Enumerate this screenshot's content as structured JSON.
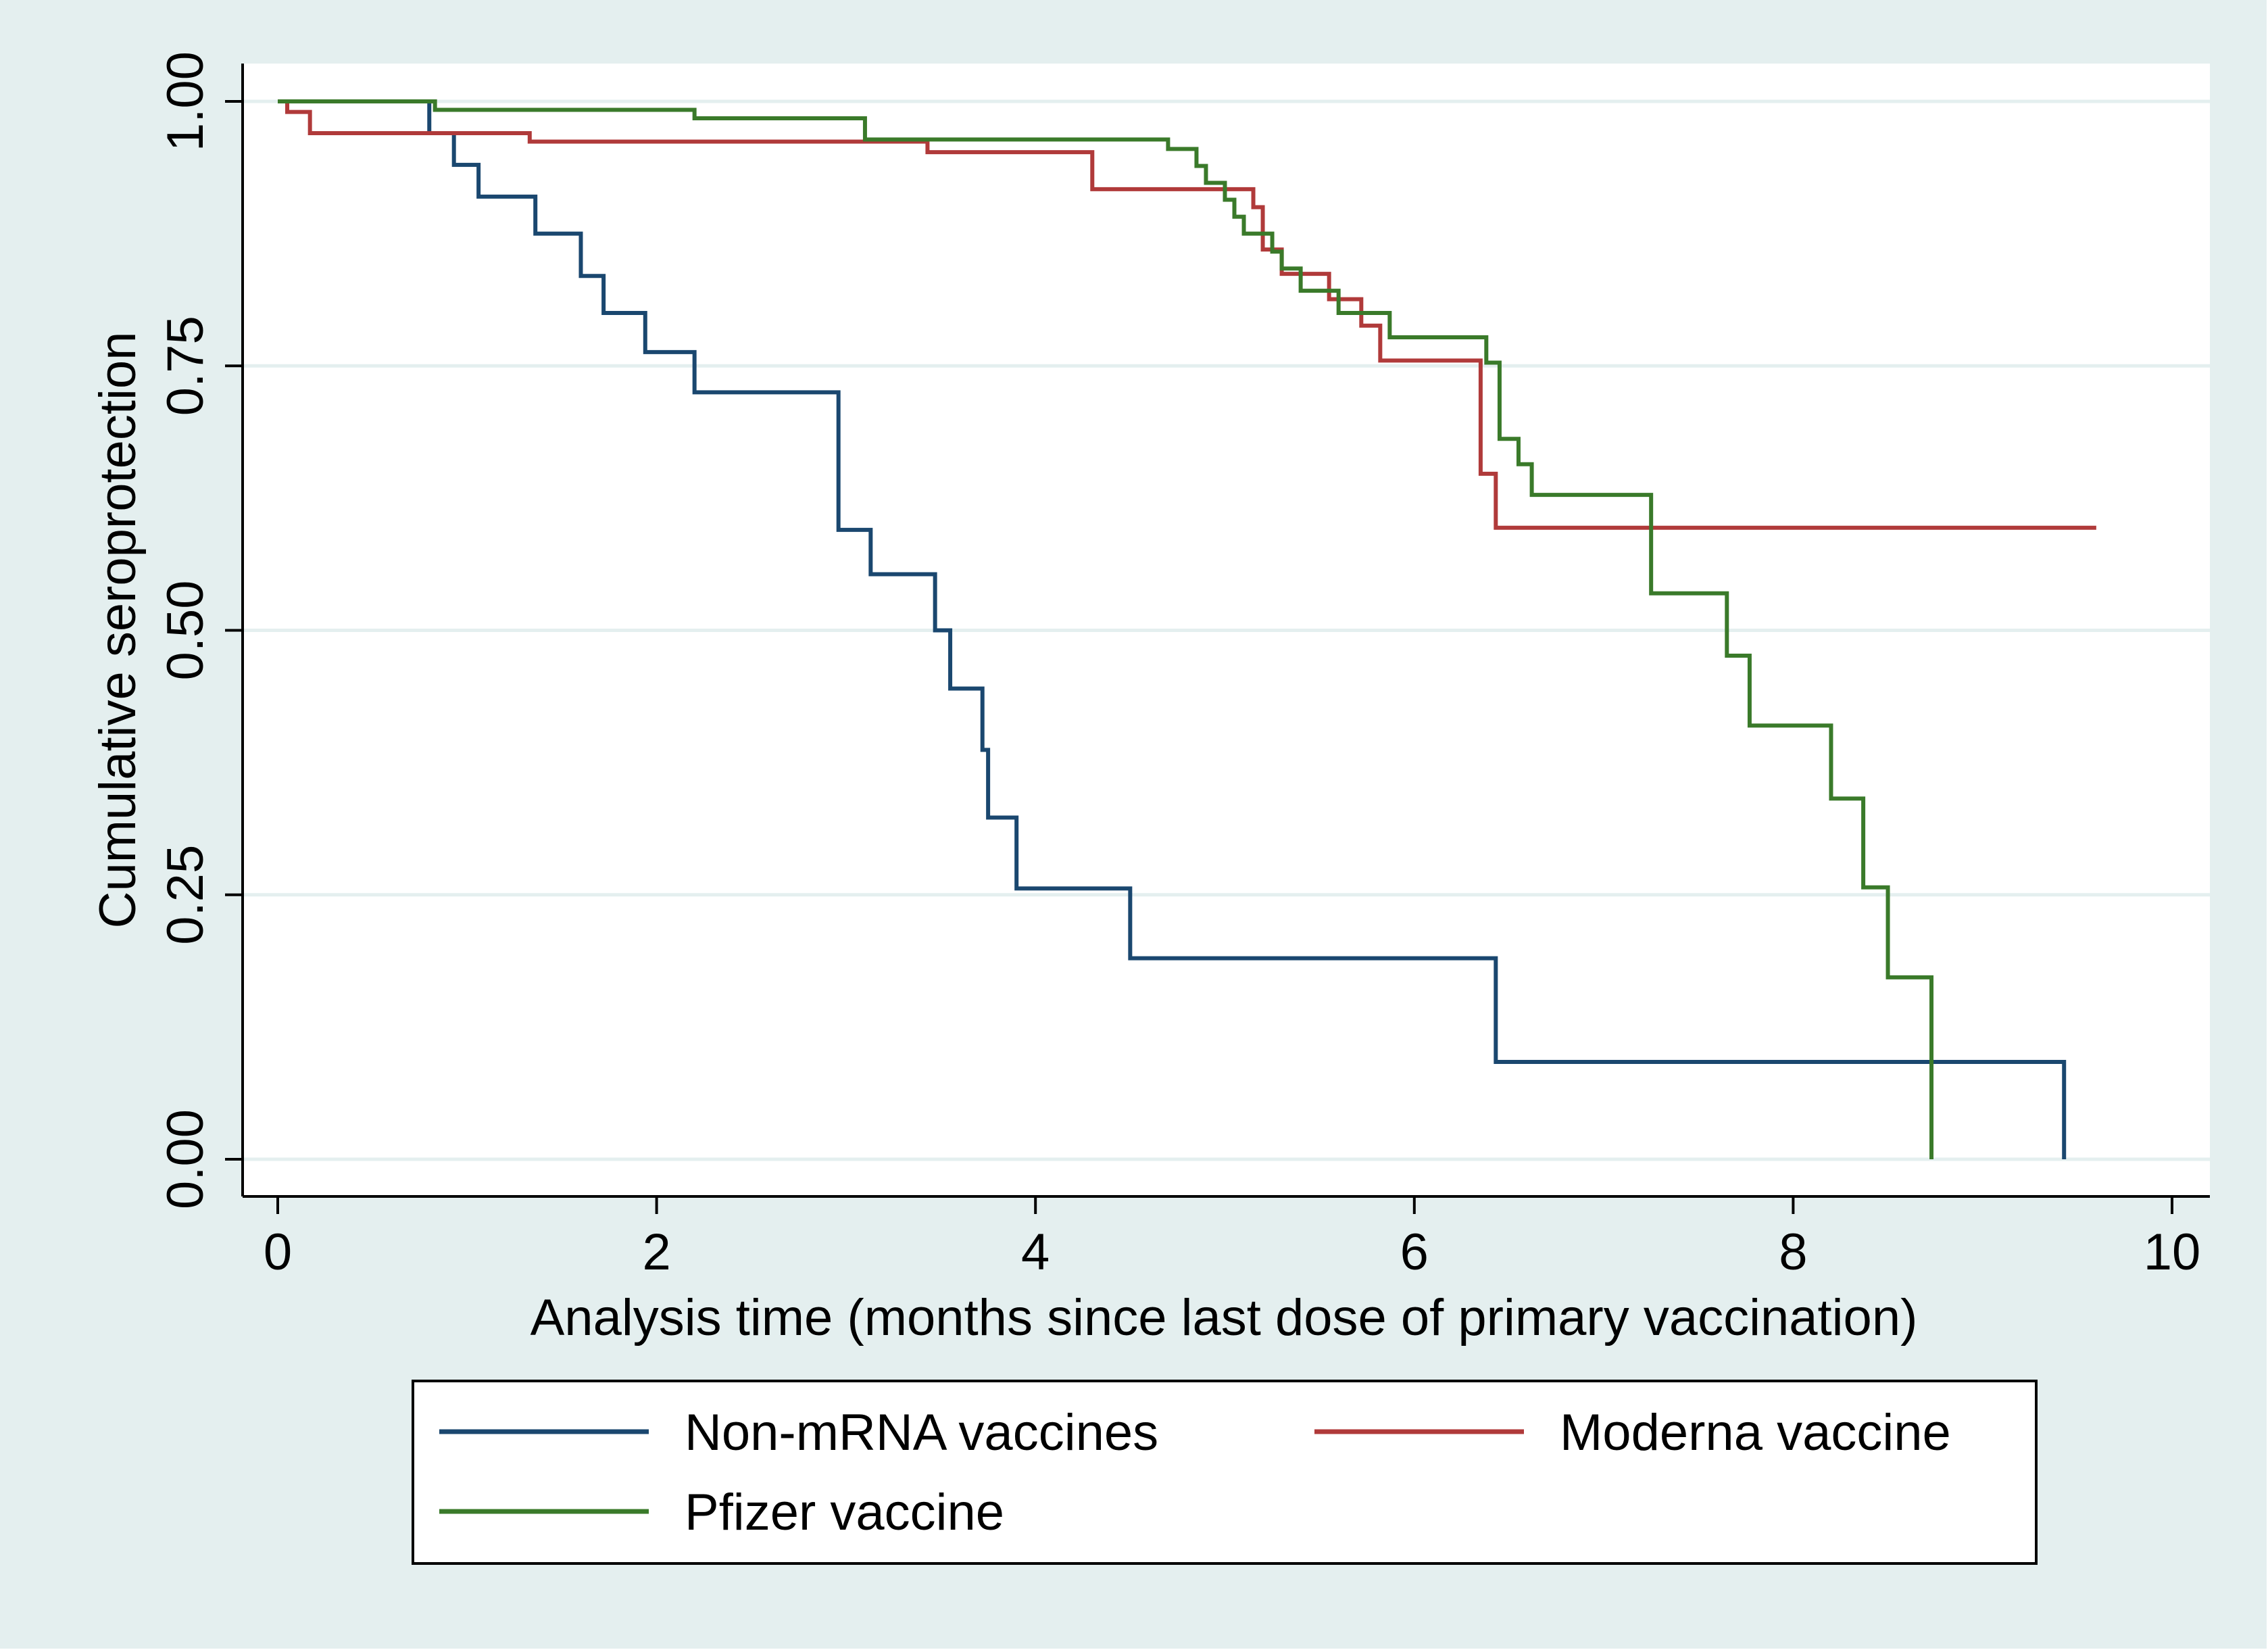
{
  "chart_data": {
    "type": "line",
    "step": true,
    "title": "",
    "xlabel": "Analysis time (months since last dose of primary vaccination)",
    "ylabel": "Cumulative seroprotection",
    "xlim": [
      0,
      10
    ],
    "ylim": [
      0,
      1
    ],
    "xticks": [
      0,
      2,
      4,
      6,
      8,
      10
    ],
    "xtick_labels": [
      "0",
      "2",
      "4",
      "6",
      "8",
      "10"
    ],
    "yticks": [
      0,
      0.25,
      0.5,
      0.75,
      1
    ],
    "ytick_labels": [
      "0.00",
      "0.25",
      "0.50",
      "0.75",
      "1.00"
    ],
    "grid": "horizontal",
    "legend_position": "bottom",
    "series": [
      {
        "name": "Non-mRNA vaccines",
        "color": "#1a476f",
        "x": [
          0,
          0.8,
          0.93,
          1.06,
          1.36,
          1.6,
          1.72,
          1.94,
          2.2,
          2.96,
          3.13,
          3.47,
          3.55,
          3.72,
          3.75,
          3.9,
          4.5,
          6.43,
          9.43,
          9.43
        ],
        "y": [
          1.0,
          0.97,
          0.94,
          0.91,
          0.875,
          0.835,
          0.8,
          0.763,
          0.725,
          0.595,
          0.553,
          0.5,
          0.445,
          0.387,
          0.323,
          0.256,
          0.19,
          0.092,
          0.092,
          0.0
        ]
      },
      {
        "name": "Moderna vaccine",
        "color": "#b03a3a",
        "x": [
          0,
          0.05,
          0.17,
          1.33,
          3.43,
          4.3,
          5.15,
          5.2,
          5.3,
          5.55,
          5.72,
          5.82,
          5.9,
          6.35,
          6.43,
          9.6
        ],
        "y": [
          1.0,
          0.99,
          0.97,
          0.962,
          0.952,
          0.917,
          0.9,
          0.86,
          0.837,
          0.813,
          0.788,
          0.755,
          0.755,
          0.648,
          0.597,
          0.597
        ]
      },
      {
        "name": "Pfizer vaccine",
        "color": "#3a7a2a",
        "x": [
          0,
          0.83,
          2.2,
          3.1,
          4.7,
          4.85,
          4.9,
          5.0,
          5.05,
          5.1,
          5.25,
          5.3,
          5.4,
          5.6,
          5.75,
          5.87,
          6.38,
          6.45,
          6.55,
          6.62,
          7.25,
          7.65,
          7.77,
          8.2,
          8.37,
          8.5,
          8.73,
          8.73
        ],
        "y": [
          1.0,
          0.992,
          0.984,
          0.964,
          0.955,
          0.939,
          0.923,
          0.907,
          0.891,
          0.875,
          0.858,
          0.842,
          0.821,
          0.8,
          0.8,
          0.777,
          0.753,
          0.681,
          0.657,
          0.628,
          0.535,
          0.476,
          0.41,
          0.341,
          0.257,
          0.172,
          0.172,
          0.0
        ]
      }
    ]
  }
}
